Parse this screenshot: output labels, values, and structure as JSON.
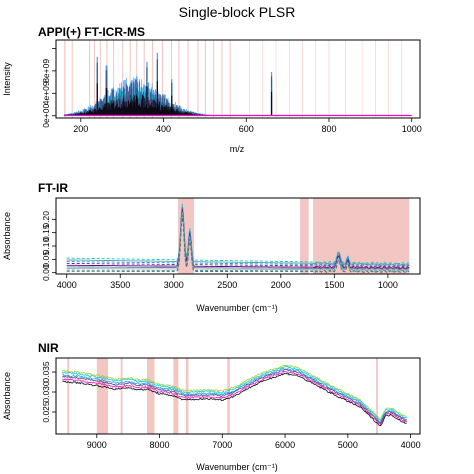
{
  "figure": {
    "title": "Single-block PLSR"
  },
  "chart_data": [
    {
      "id": "ms",
      "type": "line",
      "title": "APPI(+) FT-ICR-MS",
      "xlabel": "m/z",
      "ylabel": "Intensity",
      "xlim": [
        140,
        1020
      ],
      "ylim": [
        -400000000.0,
        13500000000.0
      ],
      "xticks": [
        200,
        400,
        600,
        800,
        1000
      ],
      "yticks": [
        0,
        4000000000.0,
        8000000000.0,
        12000000000.0
      ],
      "ytick_labels": [
        "0e+00",
        "4e+09",
        "8e+09",
        ""
      ],
      "highlight_bands": [
        [
          160,
          163
        ],
        [
          178,
          180
        ],
        [
          220,
          222
        ],
        [
          232,
          234
        ],
        [
          246,
          248
        ],
        [
          262,
          264
        ],
        [
          278,
          280
        ],
        [
          300,
          302
        ],
        [
          318,
          320
        ],
        [
          334,
          336
        ],
        [
          352,
          354
        ],
        [
          372,
          374
        ],
        [
          396,
          398
        ],
        [
          418,
          420
        ],
        [
          436,
          438
        ],
        [
          458,
          460
        ],
        [
          482,
          484
        ],
        [
          500,
          502
        ],
        [
          520,
          522
        ],
        [
          540,
          542
        ],
        [
          560,
          562
        ]
      ],
      "faint_lines": [
        608,
        640,
        672,
        704,
        736,
        768,
        800,
        840,
        880,
        912,
        944,
        976
      ],
      "spectrum": {
        "range": [
          160,
          720
        ],
        "peak_center": 330,
        "peak_width": 95,
        "peak_height": 7200000000.0,
        "spikes": [
          [
            240,
            10500000000.0
          ],
          [
            262,
            9000000000.0
          ],
          [
            360,
            9600000000.0
          ],
          [
            385,
            11200000000.0
          ],
          [
            420,
            6500000000.0
          ],
          [
            661,
            7800000000.0
          ]
        ]
      },
      "series": [
        {
          "color": "#1e90ff",
          "scale": 1.0
        },
        {
          "color": "#00ced1",
          "scale": 0.8
        },
        {
          "color": "#ff00cc",
          "scale": 0.45
        },
        {
          "color": "#3d4a7a",
          "scale": 0.9
        },
        {
          "color": "#000000",
          "scale": 0.55
        }
      ]
    },
    {
      "id": "ftir",
      "type": "line",
      "title": "FT-IR",
      "xlabel": "Wavenumber (cm⁻¹)",
      "ylabel": "Absorbance",
      "xlim": [
        4100,
        700
      ],
      "ylim": [
        -0.005,
        0.28
      ],
      "xticks": [
        4000,
        3500,
        3000,
        2500,
        2000,
        1500,
        1000
      ],
      "yticks": [
        0.0,
        0.05,
        0.1,
        0.15,
        0.2
      ],
      "ytick_labels": [
        "0.00",
        "0.05",
        "0.10",
        "0.15",
        "0.20"
      ],
      "highlight_bands": [
        [
          2960,
          2810
        ],
        [
          1820,
          1740
        ],
        [
          1700,
          800
        ]
      ],
      "peaks": [
        [
          2920,
          0.21,
          22
        ],
        [
          2850,
          0.12,
          18
        ],
        [
          1460,
          0.045,
          20
        ],
        [
          1375,
          0.025,
          14
        ]
      ],
      "baselines": [
        [
          0.063,
          "#00ced1"
        ],
        [
          0.055,
          "#5f9ea0"
        ],
        [
          0.048,
          "#1e90ff"
        ],
        [
          0.04,
          "#483d8b"
        ],
        [
          0.032,
          "#800080"
        ],
        [
          0.025,
          "#4682b4"
        ],
        [
          0.018,
          "#b0b0b0"
        ],
        [
          0.011,
          "#20b2aa"
        ],
        [
          0.006,
          "#666666"
        ]
      ]
    },
    {
      "id": "nir",
      "type": "line",
      "title": "NIR",
      "xlabel": "Wavenumber (cm⁻¹)",
      "ylabel": "Absorbance",
      "xlim": [
        9650,
        3850
      ],
      "ylim": [
        0.0195,
        0.0385
      ],
      "xticks": [
        9000,
        8000,
        7000,
        6000,
        5000,
        4000
      ],
      "yticks": [
        0.025,
        0.03,
        0.035
      ],
      "ytick_labels": [
        "0.025",
        "0.030",
        "0.035"
      ],
      "highlight_bands": [
        [
          9470,
          9440
        ],
        [
          9000,
          8820
        ],
        [
          8620,
          8590
        ],
        [
          8200,
          8080
        ],
        [
          7780,
          7700
        ],
        [
          7580,
          7540
        ],
        [
          6920,
          6880
        ],
        [
          4550,
          4520
        ]
      ],
      "profile": [
        [
          9550,
          0.0338
        ],
        [
          9300,
          0.0335
        ],
        [
          9100,
          0.033
        ],
        [
          8900,
          0.0325
        ],
        [
          8700,
          0.0318
        ],
        [
          8500,
          0.0322
        ],
        [
          8300,
          0.0316
        ],
        [
          8200,
          0.0318
        ],
        [
          8000,
          0.0306
        ],
        [
          7800,
          0.0302
        ],
        [
          7600,
          0.029
        ],
        [
          7400,
          0.0292
        ],
        [
          7200,
          0.0293
        ],
        [
          7000,
          0.029
        ],
        [
          6800,
          0.03
        ],
        [
          6600,
          0.0318
        ],
        [
          6300,
          0.034
        ],
        [
          6000,
          0.0355
        ],
        [
          5800,
          0.035
        ],
        [
          5500,
          0.0325
        ],
        [
          5200,
          0.03
        ],
        [
          5000,
          0.0285
        ],
        [
          4800,
          0.027
        ],
        [
          4600,
          0.024
        ],
        [
          4480,
          0.0222
        ],
        [
          4400,
          0.0248
        ],
        [
          4300,
          0.025
        ],
        [
          4150,
          0.0235
        ],
        [
          4050,
          0.0228
        ]
      ],
      "series": [
        {
          "color": "#ff00cc",
          "offset": -0.0004
        },
        {
          "color": "#1e90ff",
          "offset": 0.0003
        },
        {
          "color": "#00ced1",
          "offset": 0.0007
        },
        {
          "color": "#3d4a7a",
          "offset": 0.0
        },
        {
          "color": "#000000",
          "offset": -0.0008
        },
        {
          "color": "#9acd32",
          "offset": 0.001
        }
      ]
    }
  ]
}
